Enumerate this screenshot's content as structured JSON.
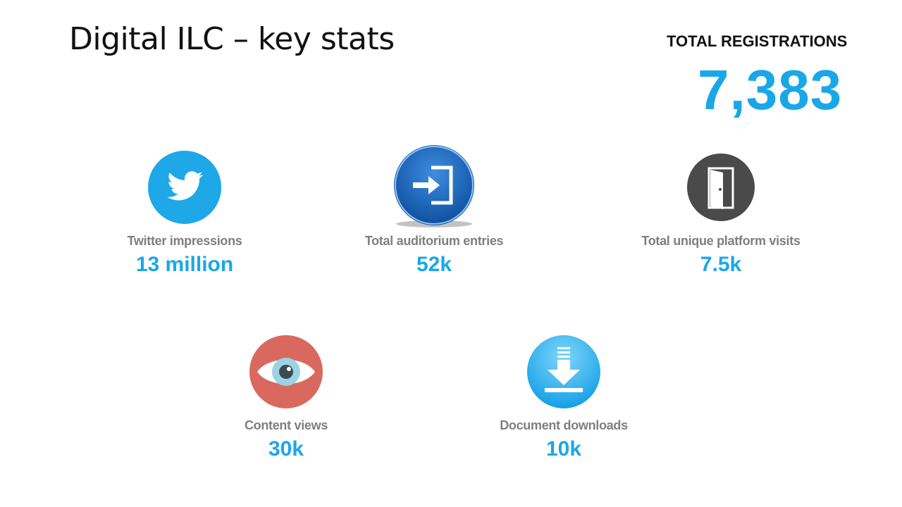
{
  "slide": {
    "title": "Digital ILC – key stats",
    "registrations": {
      "label": "TOTAL REGISTRATIONS",
      "value": "7,383"
    }
  },
  "stats": [
    {
      "label": "Twitter impressions",
      "value": "13 million",
      "icon": "twitter-bird-icon",
      "color": "#1da1f2"
    },
    {
      "label": "Total auditorium entries",
      "value": "52k",
      "icon": "enter-arrow-icon",
      "color": "#1a66b8"
    },
    {
      "label": "Total unique platform visits",
      "value": "7.5k",
      "icon": "open-door-icon",
      "color": "#4a4a4a"
    },
    {
      "label": "Content views",
      "value": "30k",
      "icon": "eye-icon",
      "color": "#d96b5f"
    },
    {
      "label": "Document downloads",
      "value": "10k",
      "icon": "download-arrow-icon",
      "color": "#2bb5ef"
    }
  ],
  "colors": {
    "accent": "#1aa7e8",
    "label": "#7f7f7f",
    "title": "#111111"
  }
}
